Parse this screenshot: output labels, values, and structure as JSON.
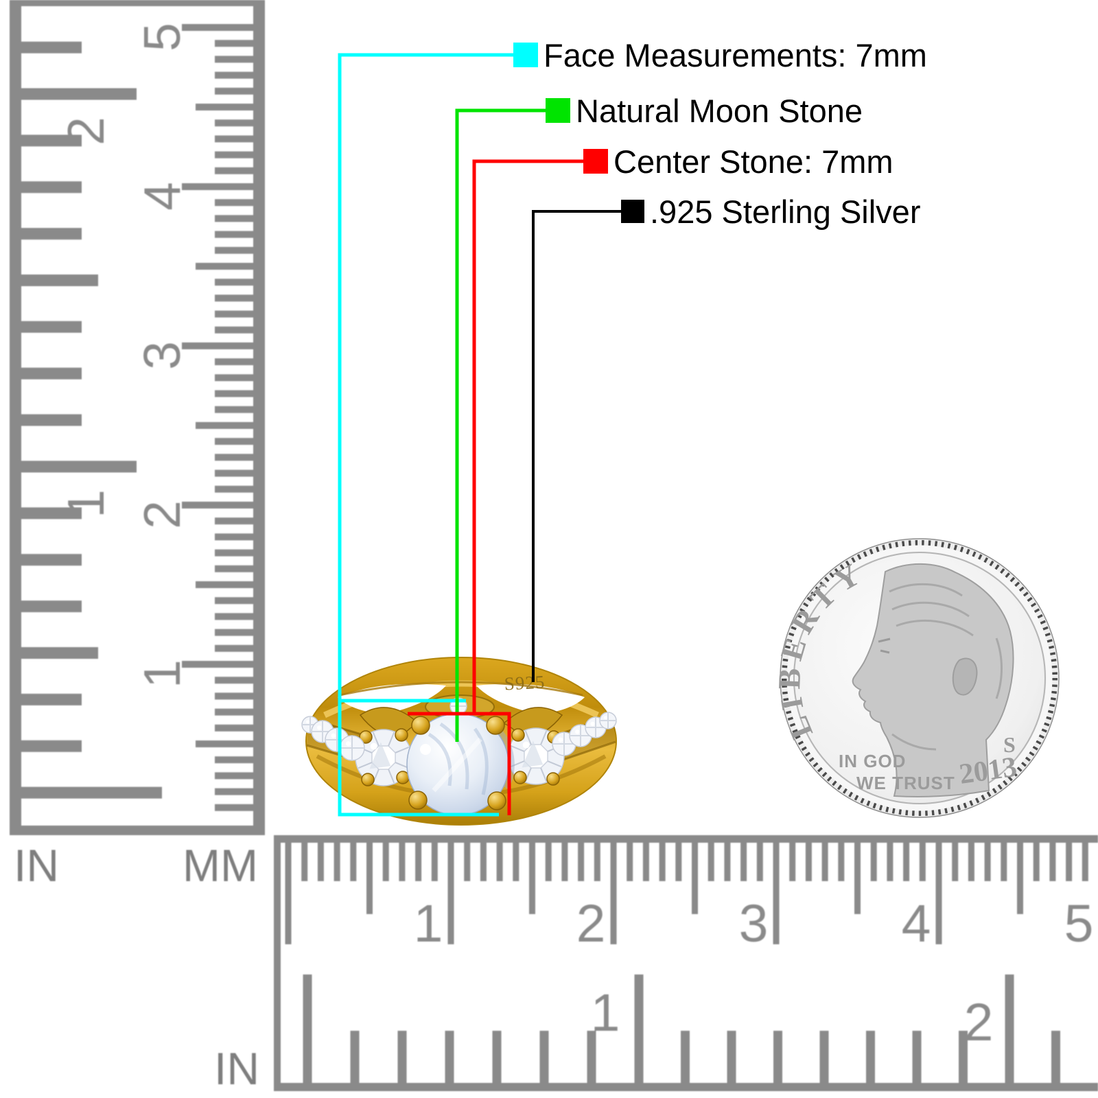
{
  "palette": {
    "cyan": "#00FFFF",
    "green": "#00E400",
    "red": "#FF0000",
    "black": "#000000",
    "ruler_gray": "#8A8A8A",
    "label_gray": "#7E7E7E",
    "gold": "#D4A01E",
    "coin_text_gray": "#9B9B9B"
  },
  "legend": {
    "items": [
      {
        "id": "face",
        "color": "#00FFFF",
        "label": "Face Measurements: 7mm"
      },
      {
        "id": "stone",
        "color": "#00E400",
        "label": "Natural Moon Stone"
      },
      {
        "id": "center",
        "color": "#FF0000",
        "label": "Center Stone: 7mm"
      },
      {
        "id": "metal",
        "color": "#000000",
        "label": ".925 Sterling Silver"
      }
    ]
  },
  "rulers": {
    "side": {
      "in_label": "IN",
      "mm_label": "MM",
      "in_numbers": [
        "2",
        "1"
      ],
      "mm_numbers": [
        "5",
        "4",
        "3",
        "2",
        "1"
      ]
    },
    "bottom": {
      "in_label": "IN",
      "mm_numbers": [
        "1",
        "2",
        "3",
        "4",
        "5"
      ],
      "in_numbers": [
        "1",
        "2"
      ]
    }
  },
  "ring": {
    "engraving": "S925"
  },
  "coin": {
    "legend_text": "LIBERTY",
    "motto_line1": "IN GOD",
    "motto_line2": "WE TRUST",
    "date": "2013",
    "mint_mark": "S"
  }
}
